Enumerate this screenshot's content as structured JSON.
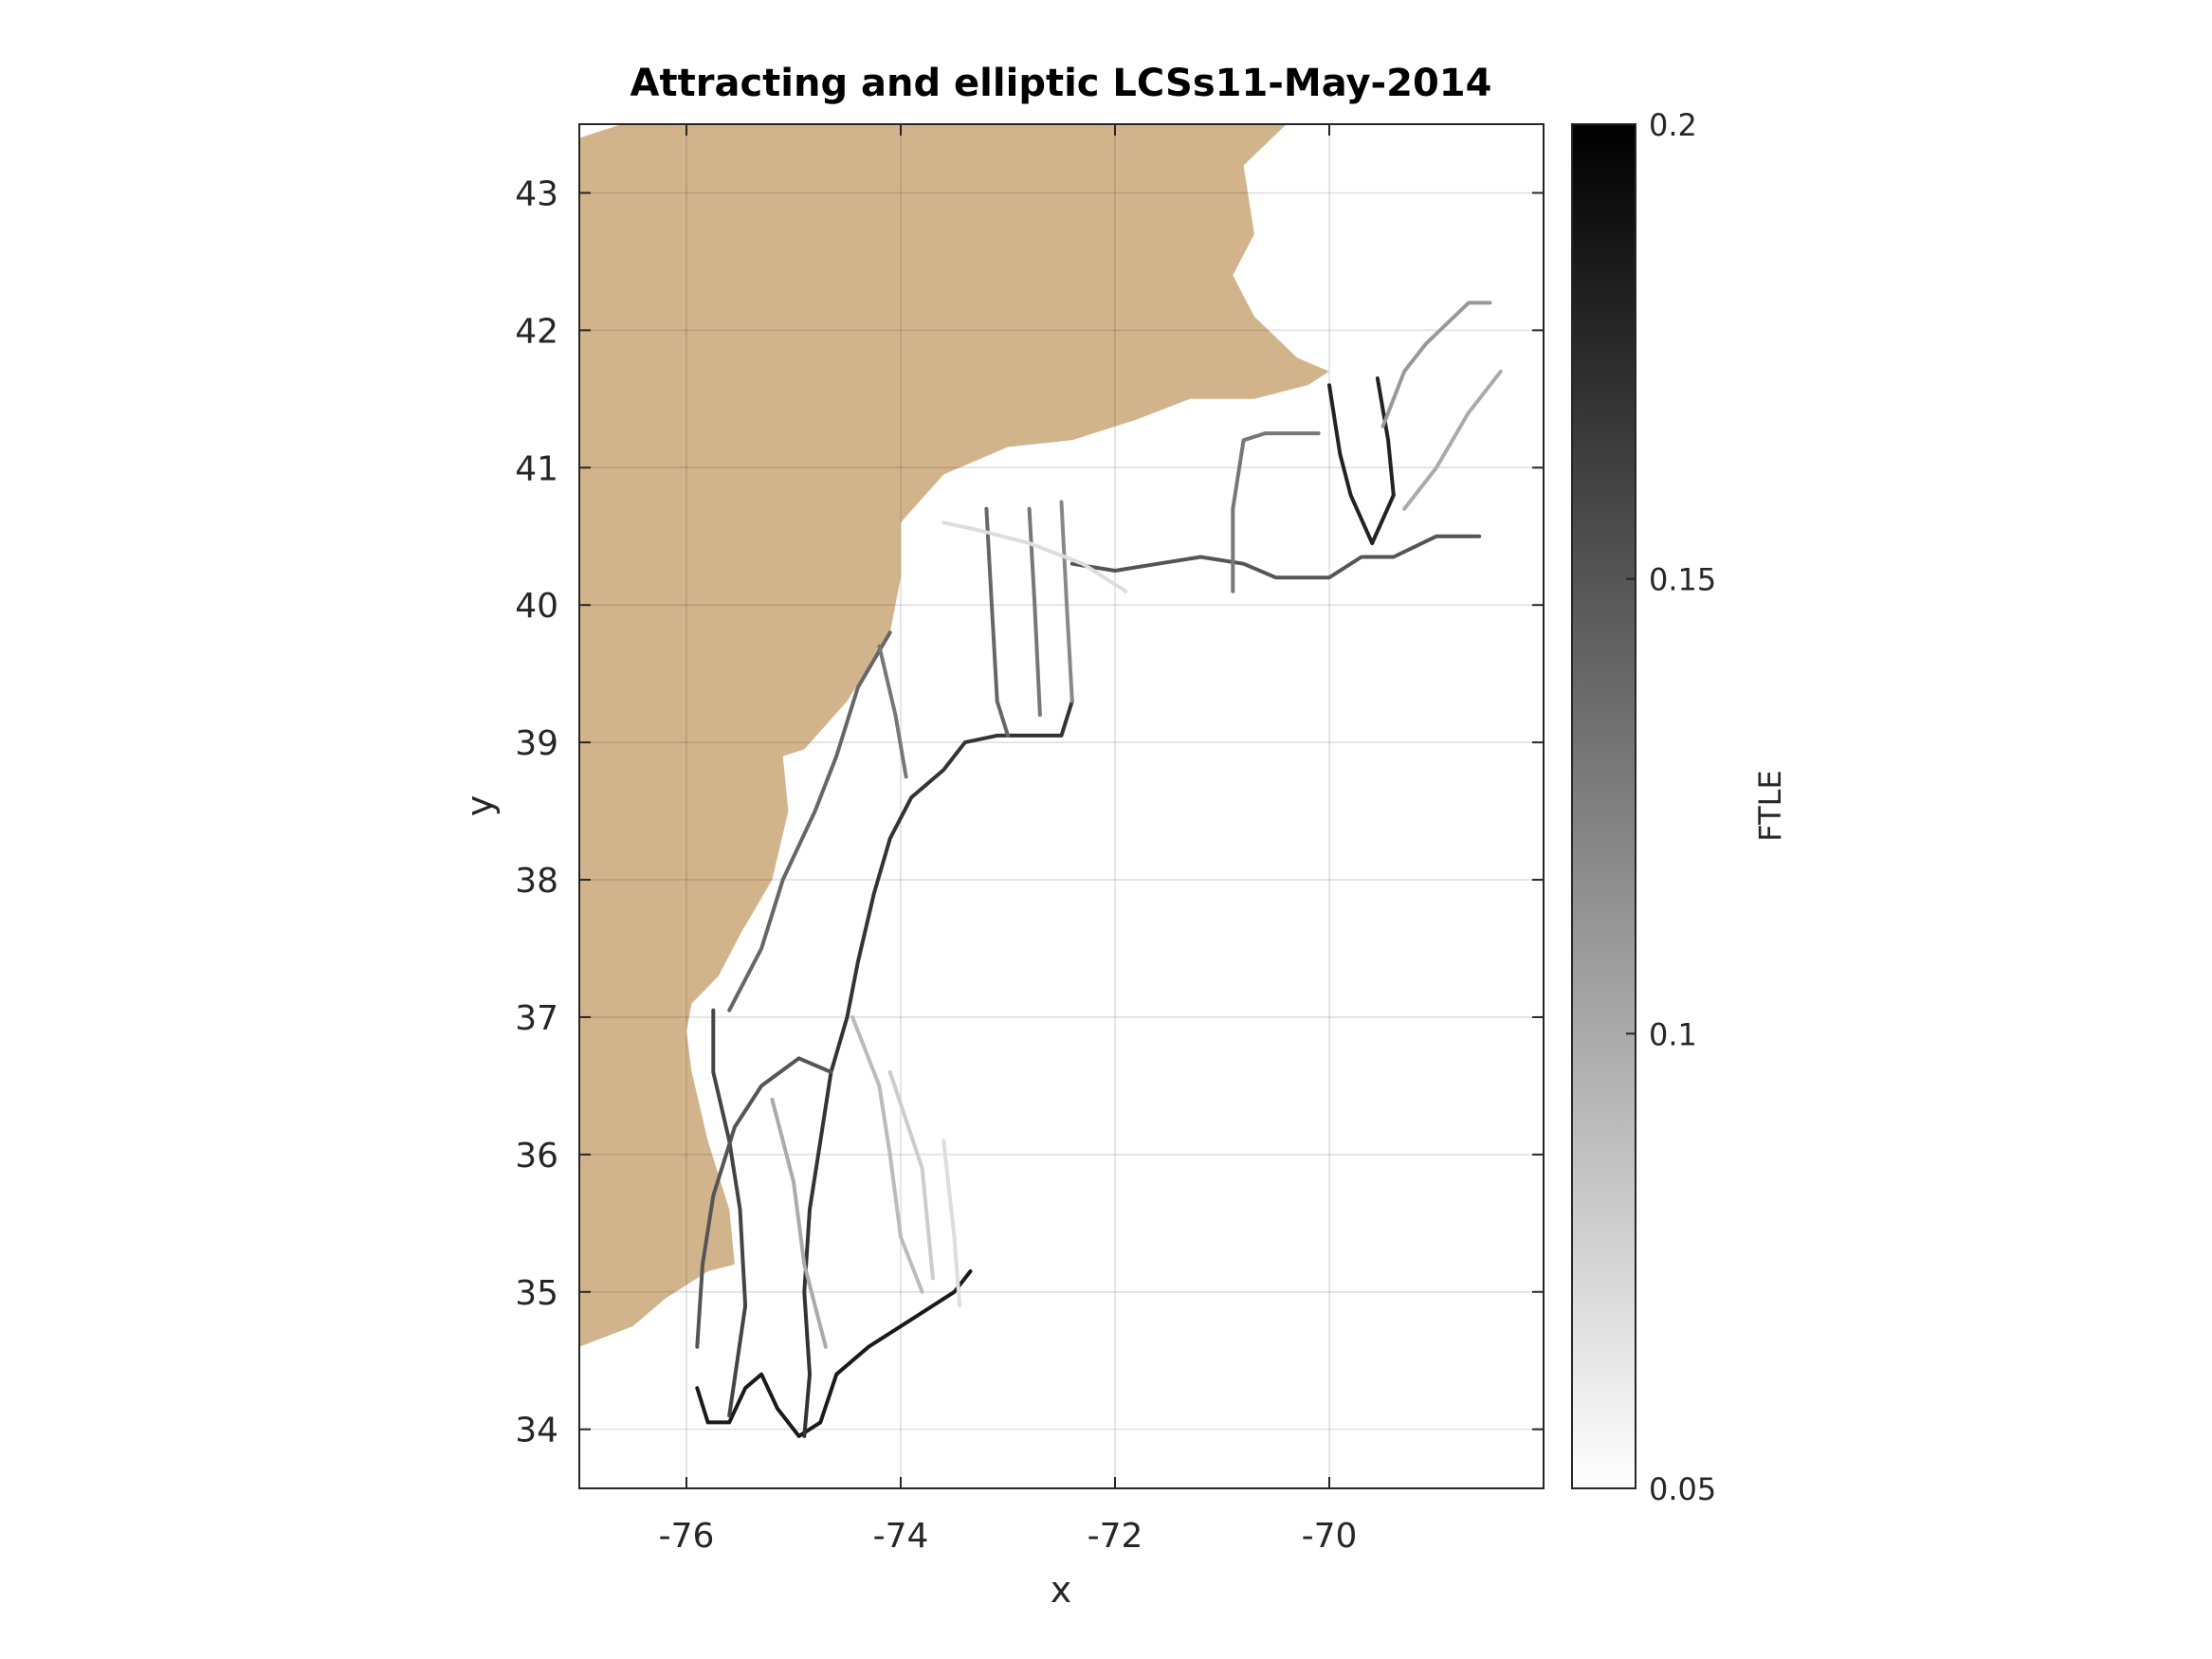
{
  "chart_data": {
    "type": "heatmap",
    "title": "Attracting and elliptic LCSs11-May-2014",
    "xlabel": "x",
    "ylabel": "y",
    "xlim": [
      -77,
      -68
    ],
    "ylim": [
      33.57,
      43.5
    ],
    "xticks": [
      -76,
      -74,
      -72,
      -70
    ],
    "yticks": [
      34,
      35,
      36,
      37,
      38,
      39,
      40,
      41,
      42,
      43
    ],
    "grid": true,
    "land_color": "#d2b48c",
    "colormap": "gray (white to black)",
    "colorbar": {
      "label": "FTLE",
      "min": 0.05,
      "max": 0.2,
      "ticks": [
        "0.05",
        "0.1",
        "0.15",
        "0.2"
      ]
    },
    "coastline": [
      [
        -77,
        43.4
      ],
      [
        -76.6,
        43.5
      ],
      [
        -70.4,
        43.5
      ],
      [
        -70.8,
        43.2
      ],
      [
        -70.7,
        42.7
      ],
      [
        -70.9,
        42.4
      ],
      [
        -70.7,
        42.1
      ],
      [
        -70.3,
        41.8
      ],
      [
        -70.0,
        41.7
      ],
      [
        -70.2,
        41.6
      ],
      [
        -70.7,
        41.5
      ],
      [
        -71.3,
        41.5
      ],
      [
        -71.8,
        41.35
      ],
      [
        -72.4,
        41.2
      ],
      [
        -73.0,
        41.15
      ],
      [
        -73.6,
        40.95
      ],
      [
        -74.0,
        40.6
      ],
      [
        -74.0,
        40.2
      ],
      [
        -74.1,
        39.8
      ],
      [
        -74.5,
        39.3
      ],
      [
        -74.9,
        38.95
      ],
      [
        -75.1,
        38.9
      ],
      [
        -75.05,
        38.5
      ],
      [
        -75.2,
        38.0
      ],
      [
        -75.5,
        37.6
      ],
      [
        -75.7,
        37.3
      ],
      [
        -75.95,
        37.1
      ],
      [
        -76.0,
        36.9
      ],
      [
        -75.95,
        36.6
      ],
      [
        -75.8,
        36.1
      ],
      [
        -75.6,
        35.6
      ],
      [
        -75.55,
        35.2
      ],
      [
        -75.8,
        35.15
      ],
      [
        -76.2,
        34.95
      ],
      [
        -76.5,
        34.75
      ],
      [
        -77,
        34.6
      ]
    ],
    "ftle_ridges": [
      {
        "ftle": 0.185,
        "points": [
          [
            -75.9,
            34.3
          ],
          [
            -75.8,
            34.05
          ],
          [
            -75.6,
            34.05
          ],
          [
            -75.45,
            34.3
          ],
          [
            -75.3,
            34.4
          ],
          [
            -75.15,
            34.15
          ],
          [
            -74.95,
            33.95
          ],
          [
            -74.75,
            34.05
          ],
          [
            -74.6,
            34.4
          ],
          [
            -74.3,
            34.6
          ],
          [
            -73.9,
            34.8
          ],
          [
            -73.5,
            35.0
          ],
          [
            -73.35,
            35.15
          ]
        ]
      },
      {
        "ftle": 0.17,
        "points": [
          [
            -74.9,
            33.95
          ],
          [
            -74.85,
            34.4
          ],
          [
            -74.9,
            35.0
          ],
          [
            -74.85,
            35.6
          ],
          [
            -74.75,
            36.1
          ],
          [
            -74.65,
            36.6
          ],
          [
            -74.5,
            37.0
          ],
          [
            -74.4,
            37.4
          ],
          [
            -74.25,
            37.9
          ],
          [
            -74.1,
            38.3
          ],
          [
            -73.9,
            38.6
          ],
          [
            -73.6,
            38.8
          ],
          [
            -73.4,
            39.0
          ],
          [
            -73.1,
            39.05
          ],
          [
            -72.5,
            39.05
          ],
          [
            -72.4,
            39.3
          ]
        ]
      },
      {
        "ftle": 0.16,
        "points": [
          [
            -75.6,
            34.1
          ],
          [
            -75.45,
            34.9
          ],
          [
            -75.5,
            35.6
          ],
          [
            -75.6,
            36.1
          ],
          [
            -75.75,
            36.6
          ],
          [
            -75.75,
            37.05
          ]
        ]
      },
      {
        "ftle": 0.15,
        "points": [
          [
            -75.9,
            34.6
          ],
          [
            -75.85,
            35.2
          ],
          [
            -75.75,
            35.7
          ],
          [
            -75.55,
            36.2
          ],
          [
            -75.3,
            36.5
          ],
          [
            -74.95,
            36.7
          ],
          [
            -74.65,
            36.6
          ]
        ]
      },
      {
        "ftle": 0.14,
        "points": [
          [
            -75.6,
            37.05
          ],
          [
            -75.3,
            37.5
          ],
          [
            -75.1,
            38.0
          ],
          [
            -74.8,
            38.5
          ],
          [
            -74.6,
            38.9
          ],
          [
            -74.4,
            39.4
          ],
          [
            -74.1,
            39.8
          ]
        ]
      },
      {
        "ftle": 0.13,
        "points": [
          [
            -74.2,
            39.7
          ],
          [
            -74.05,
            39.2
          ],
          [
            -73.95,
            38.75
          ]
        ]
      },
      {
        "ftle": 0.14,
        "points": [
          [
            -73.2,
            40.7
          ],
          [
            -73.15,
            40.0
          ],
          [
            -73.1,
            39.3
          ],
          [
            -73.0,
            39.05
          ]
        ]
      },
      {
        "ftle": 0.13,
        "points": [
          [
            -72.8,
            40.7
          ],
          [
            -72.75,
            40.0
          ],
          [
            -72.7,
            39.2
          ]
        ]
      },
      {
        "ftle": 0.12,
        "points": [
          [
            -72.5,
            40.75
          ],
          [
            -72.45,
            40.0
          ],
          [
            -72.4,
            39.3
          ]
        ]
      },
      {
        "ftle": 0.15,
        "points": [
          [
            -72.4,
            40.3
          ],
          [
            -72.0,
            40.25
          ],
          [
            -71.6,
            40.3
          ],
          [
            -71.2,
            40.35
          ],
          [
            -70.8,
            40.3
          ],
          [
            -70.5,
            40.2
          ],
          [
            -70.0,
            40.2
          ],
          [
            -69.7,
            40.35
          ],
          [
            -69.4,
            40.35
          ],
          [
            -69.0,
            40.5
          ],
          [
            -68.6,
            40.5
          ]
        ]
      },
      {
        "ftle": 0.13,
        "points": [
          [
            -70.9,
            40.1
          ],
          [
            -70.9,
            40.7
          ],
          [
            -70.8,
            41.2
          ],
          [
            -70.6,
            41.25
          ],
          [
            -70.1,
            41.25
          ]
        ]
      },
      {
        "ftle": 0.18,
        "points": [
          [
            -70.0,
            41.6
          ],
          [
            -69.9,
            41.1
          ],
          [
            -69.8,
            40.8
          ],
          [
            -69.6,
            40.45
          ],
          [
            -69.4,
            40.8
          ],
          [
            -69.45,
            41.2
          ],
          [
            -69.55,
            41.65
          ]
        ]
      },
      {
        "ftle": 0.11,
        "points": [
          [
            -69.5,
            41.3
          ],
          [
            -69.3,
            41.7
          ],
          [
            -69.1,
            41.9
          ],
          [
            -68.7,
            42.2
          ],
          [
            -68.5,
            42.2
          ]
        ]
      },
      {
        "ftle": 0.1,
        "points": [
          [
            -69.3,
            40.7
          ],
          [
            -69.0,
            41.0
          ],
          [
            -68.7,
            41.4
          ],
          [
            -68.4,
            41.7
          ]
        ]
      },
      {
        "ftle": 0.08,
        "points": [
          [
            -74.1,
            36.6
          ],
          [
            -73.8,
            35.9
          ],
          [
            -73.7,
            35.1
          ]
        ]
      },
      {
        "ftle": 0.07,
        "points": [
          [
            -73.6,
            36.1
          ],
          [
            -73.5,
            35.4
          ],
          [
            -73.45,
            34.9
          ]
        ]
      },
      {
        "ftle": 0.07,
        "points": [
          [
            -73.6,
            40.6
          ],
          [
            -73.3,
            40.55
          ],
          [
            -72.8,
            40.45
          ],
          [
            -72.3,
            40.3
          ],
          [
            -71.9,
            40.1
          ]
        ]
      },
      {
        "ftle": 0.09,
        "points": [
          [
            -74.45,
            37.0
          ],
          [
            -74.2,
            36.5
          ],
          [
            -74.1,
            36.0
          ],
          [
            -74.0,
            35.4
          ],
          [
            -73.8,
            35.0
          ]
        ]
      },
      {
        "ftle": 0.1,
        "points": [
          [
            -75.2,
            36.4
          ],
          [
            -75.0,
            35.8
          ],
          [
            -74.9,
            35.2
          ],
          [
            -74.7,
            34.6
          ]
        ]
      }
    ]
  }
}
